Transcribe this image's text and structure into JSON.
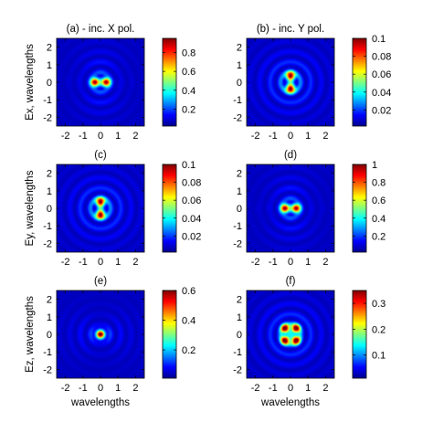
{
  "figure": {
    "colormap": [
      "#00008f",
      "#0000ff",
      "#0080ff",
      "#00ffff",
      "#80ff80",
      "#ffff00",
      "#ff8000",
      "#ff0000",
      "#800000"
    ]
  },
  "chart_data": [
    {
      "type": "heatmap",
      "id": "a",
      "title": "(a) - inc. X pol.",
      "xlabel": "",
      "ylabel": "Ex, wavelengths",
      "xlim": [
        -2.5,
        2.5
      ],
      "ylim": [
        -2.5,
        2.5
      ],
      "xticks": [
        -2,
        -1,
        0,
        1,
        2
      ],
      "yticks": [
        -2,
        -1,
        0,
        1,
        2
      ],
      "lobes": [
        {
          "x": -0.32,
          "y": 0
        },
        {
          "x": 0.32,
          "y": 0
        }
      ],
      "rings": "horizontal",
      "colorbar": {
        "range": [
          0.02,
          0.95
        ],
        "ticks": [
          "0.8",
          "0.6",
          "0.4",
          "0.2"
        ],
        "tick_values": [
          0.8,
          0.6,
          0.4,
          0.2
        ]
      }
    },
    {
      "type": "heatmap",
      "id": "b",
      "title": "(b) - inc. Y pol.",
      "xlabel": "",
      "ylabel": "",
      "xlim": [
        -2.5,
        2.5
      ],
      "ylim": [
        -2.5,
        2.5
      ],
      "xticks": [
        -2,
        -1,
        0,
        1,
        2
      ],
      "yticks": [
        -2,
        -1,
        0,
        1,
        2
      ],
      "lobes": [
        {
          "x": 0,
          "y": 0.35
        },
        {
          "x": 0,
          "y": -0.35
        }
      ],
      "rings": "quad",
      "colorbar": {
        "range": [
          0.002,
          0.1
        ],
        "ticks": [
          "0.1",
          "0.08",
          "0.06",
          "0.04",
          "0.02"
        ],
        "tick_values": [
          0.1,
          0.08,
          0.06,
          0.04,
          0.02
        ]
      }
    },
    {
      "type": "heatmap",
      "id": "c",
      "title": "(c)",
      "xlabel": "",
      "ylabel": "Ey, wavelengths",
      "xlim": [
        -2.5,
        2.5
      ],
      "ylim": [
        -2.5,
        2.5
      ],
      "xticks": [
        -2,
        -1,
        0,
        1,
        2
      ],
      "yticks": [
        -2,
        -1,
        0,
        1,
        2
      ],
      "lobes": [
        {
          "x": 0,
          "y": 0.35
        },
        {
          "x": 0,
          "y": -0.35
        }
      ],
      "rings": "quad",
      "colorbar": {
        "range": [
          0.002,
          0.1
        ],
        "ticks": [
          "0.1",
          "0.08",
          "0.06",
          "0.04",
          "0.02"
        ],
        "tick_values": [
          0.1,
          0.08,
          0.06,
          0.04,
          0.02
        ]
      }
    },
    {
      "type": "heatmap",
      "id": "d",
      "title": "(d)",
      "xlabel": "",
      "ylabel": "",
      "xlim": [
        -2.5,
        2.5
      ],
      "ylim": [
        -2.5,
        2.5
      ],
      "xticks": [
        -2,
        -1,
        0,
        1,
        2
      ],
      "yticks": [
        -2,
        -1,
        0,
        1,
        2
      ],
      "lobes": [
        {
          "x": -0.32,
          "y": 0
        },
        {
          "x": 0.32,
          "y": 0
        }
      ],
      "rings": "horizontal",
      "colorbar": {
        "range": [
          0.02,
          1.0
        ],
        "ticks": [
          "1",
          "0.8",
          "0.6",
          "0.4",
          "0.2"
        ],
        "tick_values": [
          1.0,
          0.8,
          0.6,
          0.4,
          0.2
        ]
      }
    },
    {
      "type": "heatmap",
      "id": "e",
      "title": "(e)",
      "xlabel": "wavelengths",
      "ylabel": "Ez, wavelengths",
      "xlim": [
        -2.5,
        2.5
      ],
      "ylim": [
        -2.5,
        2.5
      ],
      "xticks": [
        -2,
        -1,
        0,
        1,
        2
      ],
      "yticks": [
        -2,
        -1,
        0,
        1,
        2
      ],
      "lobes": [
        {
          "x": 0,
          "y": 0
        }
      ],
      "rings": "vertical",
      "colorbar": {
        "range": [
          0.01,
          0.6
        ],
        "ticks": [
          "0.6",
          "0.4",
          "0.2"
        ],
        "tick_values": [
          0.6,
          0.4,
          0.2
        ]
      }
    },
    {
      "type": "heatmap",
      "id": "f",
      "title": "(f)",
      "xlabel": "wavelengths",
      "ylabel": "",
      "xlim": [
        -2.5,
        2.5
      ],
      "ylim": [
        -2.5,
        2.5
      ],
      "xticks": [
        -2,
        -1,
        0,
        1,
        2
      ],
      "yticks": [
        -2,
        -1,
        0,
        1,
        2
      ],
      "lobes": [
        {
          "x": -0.3,
          "y": 0.33
        },
        {
          "x": 0.3,
          "y": 0.33
        },
        {
          "x": -0.3,
          "y": -0.33
        },
        {
          "x": 0.3,
          "y": -0.33
        }
      ],
      "rings": "quad",
      "colorbar": {
        "range": [
          0.01,
          0.35
        ],
        "ticks": [
          "0.3",
          "0.2",
          "0.1"
        ],
        "tick_values": [
          0.3,
          0.2,
          0.1
        ]
      }
    }
  ]
}
